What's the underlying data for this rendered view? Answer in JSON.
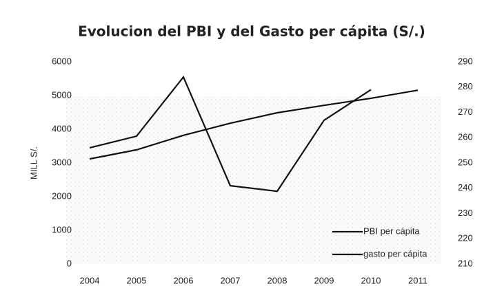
{
  "chart_data": {
    "type": "line",
    "title": "Evolucion del PBI y del Gasto per cápita (S/.)",
    "ylabel": "MILL S/.",
    "categories": [
      "2004",
      "2005",
      "2006",
      "2007",
      "2008",
      "2009",
      "2010",
      "2011"
    ],
    "series": [
      {
        "name": "PBI per cápita",
        "color": "#111111",
        "values": [
          3120,
          3390,
          3820,
          4180,
          4490,
          4710,
          4920,
          5160
        ]
      },
      {
        "name": "gasto per cápita",
        "color": "#111111",
        "axis": "y2",
        "values": [
          256,
          260.6,
          284,
          241,
          238.8,
          266.9,
          279,
          null
        ]
      }
    ],
    "ylim": [
      0,
      6000
    ],
    "yticks": [
      0,
      1000,
      2000,
      3000,
      4000,
      5000,
      6000
    ],
    "y2lim": [
      210,
      290
    ],
    "y2ticks": [
      210,
      220,
      230,
      240,
      250,
      260,
      270,
      280,
      290
    ],
    "legend": "lower right"
  }
}
